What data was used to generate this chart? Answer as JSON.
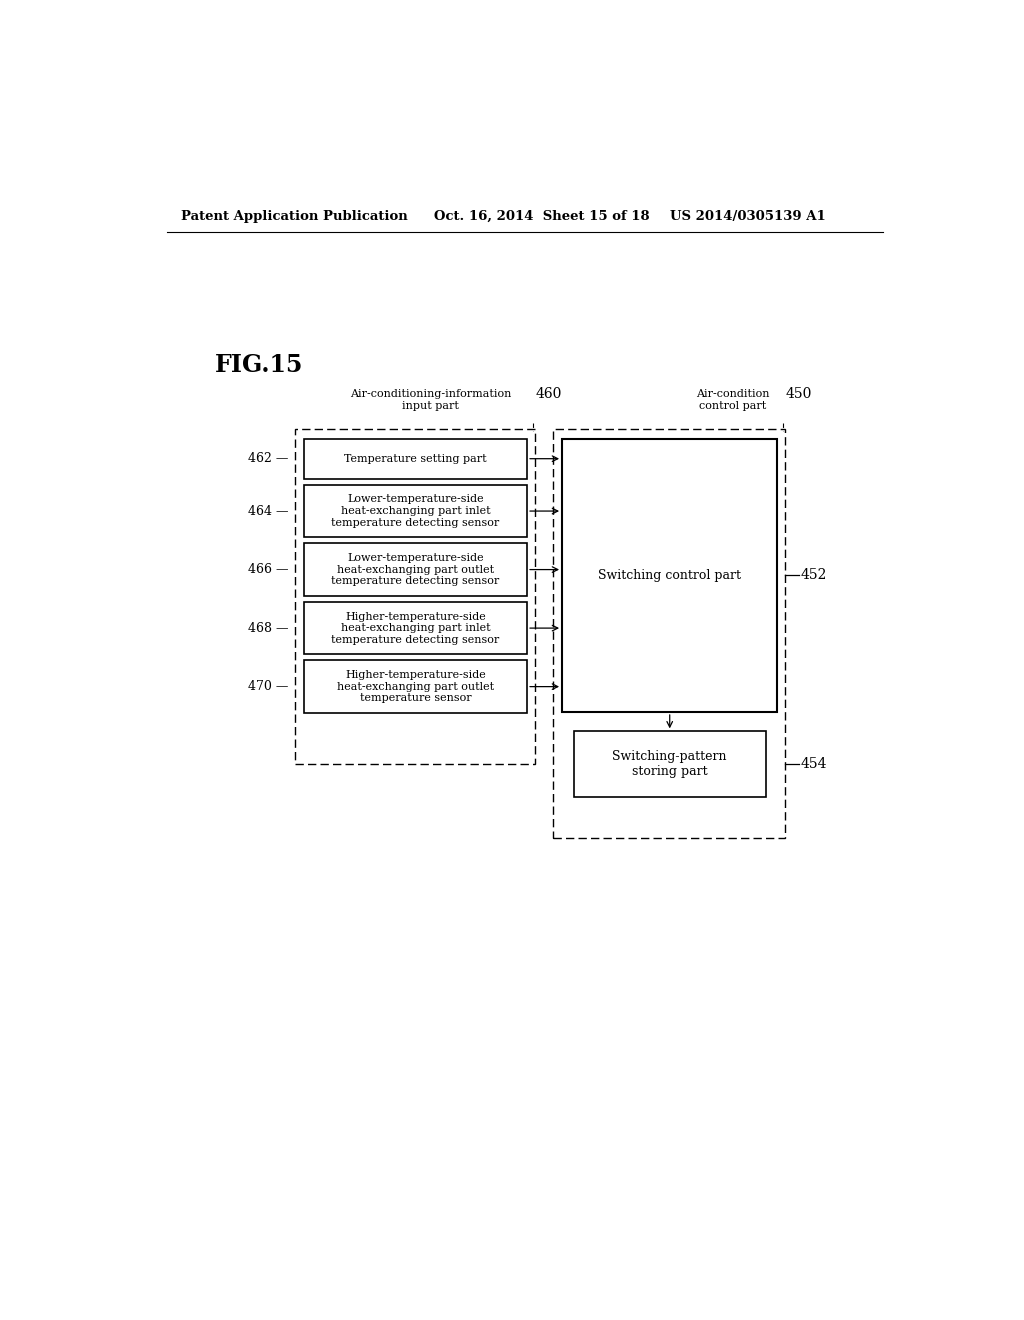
{
  "background_color": "#ffffff",
  "header_left": "Patent Application Publication",
  "header_center": "Oct. 16, 2014  Sheet 15 of 18",
  "header_right": "US 2014/0305139 A1",
  "fig_label": "FIG.15",
  "label_460": "460",
  "label_450": "450",
  "label_452": "452",
  "label_454": "454",
  "label_462": "462",
  "label_464": "464",
  "label_466": "466",
  "label_468": "468",
  "label_470": "470",
  "text_460_line1": "Air-conditioning-information",
  "text_460_line2": "input part",
  "text_450_line1": "Air-condition",
  "text_450_line2": "control part",
  "box_462_label": "Temperature setting part",
  "box_464_label": "Lower-temperature-side\nheat-exchanging part inlet\ntemperature detecting sensor",
  "box_466_label": "Lower-temperature-side\nheat-exchanging part outlet\ntemperature detecting sensor",
  "box_468_label": "Higher-temperature-side\nheat-exchanging part inlet\ntemperature detecting sensor",
  "box_470_label": "Higher-temperature-side\nheat-exchanging part outlet\ntemperature sensor",
  "box_452_label": "Switching control part",
  "box_454_label": "Switching-pattern\nstoring part",
  "font_size_header": 9.5,
  "font_size_label": 9,
  "font_size_box": 8,
  "font_size_fig": 17
}
